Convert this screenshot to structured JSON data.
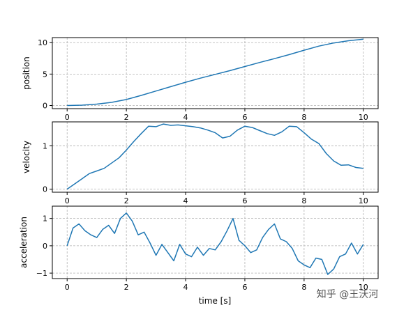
{
  "chart_data": [
    {
      "type": "line",
      "title": "",
      "xlabel": "",
      "ylabel": "position",
      "xlim": [
        -0.5,
        10.5
      ],
      "ylim": [
        -0.5,
        10.8
      ],
      "xticks": [
        0,
        2,
        4,
        6,
        8,
        10
      ],
      "yticks": [
        0,
        5,
        10
      ],
      "grid": true,
      "color": "#1f77b4",
      "series": [
        {
          "x": [
            0,
            0.5,
            1.0,
            1.5,
            2.0,
            2.5,
            3.0,
            3.5,
            4.0,
            4.5,
            5.0,
            5.5,
            6.0,
            6.5,
            7.0,
            7.5,
            8.0,
            8.5,
            9.0,
            9.5,
            10.0
          ],
          "values": [
            0.0,
            0.05,
            0.22,
            0.5,
            0.95,
            1.6,
            2.3,
            3.0,
            3.7,
            4.35,
            4.95,
            5.55,
            6.2,
            6.85,
            7.45,
            8.1,
            8.8,
            9.45,
            9.95,
            10.3,
            10.55
          ]
        }
      ]
    },
    {
      "type": "line",
      "title": "",
      "xlabel": "",
      "ylabel": "velocity",
      "xlim": [
        -0.5,
        10.5
      ],
      "ylim": [
        -0.07,
        1.55
      ],
      "xticks": [
        0,
        2,
        4,
        6,
        8,
        10
      ],
      "yticks": [
        0,
        1
      ],
      "grid": true,
      "color": "#1f77b4",
      "series": [
        {
          "x": [
            0,
            0.25,
            0.5,
            0.75,
            1.0,
            1.25,
            1.5,
            1.75,
            2.0,
            2.25,
            2.5,
            2.75,
            3.0,
            3.25,
            3.5,
            3.75,
            4.0,
            4.25,
            4.5,
            4.75,
            5.0,
            5.25,
            5.5,
            5.75,
            6.0,
            6.25,
            6.5,
            6.75,
            7.0,
            7.25,
            7.5,
            7.75,
            8.0,
            8.25,
            8.5,
            8.75,
            9.0,
            9.25,
            9.5,
            9.75,
            10.0
          ],
          "values": [
            0.0,
            0.12,
            0.24,
            0.36,
            0.42,
            0.48,
            0.6,
            0.72,
            0.9,
            1.1,
            1.28,
            1.45,
            1.44,
            1.5,
            1.47,
            1.48,
            1.46,
            1.44,
            1.41,
            1.36,
            1.3,
            1.18,
            1.22,
            1.36,
            1.45,
            1.42,
            1.35,
            1.28,
            1.24,
            1.32,
            1.45,
            1.44,
            1.3,
            1.15,
            1.05,
            0.82,
            0.65,
            0.55,
            0.56,
            0.5,
            0.48
          ]
        }
      ]
    },
    {
      "type": "line",
      "title": "",
      "xlabel": "time [s]",
      "ylabel": "acceleration",
      "xlim": [
        -0.5,
        10.5
      ],
      "ylim": [
        -1.2,
        1.45
      ],
      "xticks": [
        0,
        2,
        4,
        6,
        8,
        10
      ],
      "yticks": [
        -1,
        0,
        1
      ],
      "grid": true,
      "color": "#1f77b4",
      "series": [
        {
          "x": [
            0,
            0.2,
            0.4,
            0.6,
            0.8,
            1.0,
            1.2,
            1.4,
            1.6,
            1.8,
            2.0,
            2.2,
            2.4,
            2.6,
            2.8,
            3.0,
            3.2,
            3.4,
            3.6,
            3.8,
            4.0,
            4.2,
            4.4,
            4.6,
            4.8,
            5.0,
            5.2,
            5.4,
            5.6,
            5.8,
            6.0,
            6.2,
            6.4,
            6.6,
            6.8,
            7.0,
            7.2,
            7.4,
            7.6,
            7.8,
            8.0,
            8.2,
            8.4,
            8.6,
            8.8,
            9.0,
            9.2,
            9.4,
            9.6,
            9.8,
            10.0
          ],
          "values": [
            0.0,
            0.65,
            0.8,
            0.55,
            0.4,
            0.3,
            0.6,
            0.75,
            0.45,
            1.0,
            1.2,
            0.9,
            0.4,
            0.5,
            0.1,
            -0.35,
            0.05,
            -0.25,
            -0.55,
            0.05,
            -0.3,
            -0.4,
            -0.05,
            -0.35,
            -0.1,
            -0.15,
            0.15,
            0.55,
            1.0,
            0.2,
            0.0,
            -0.25,
            -0.15,
            0.3,
            0.6,
            0.8,
            0.25,
            0.15,
            -0.1,
            -0.55,
            -0.7,
            -0.8,
            -0.45,
            -0.5,
            -1.05,
            -0.85,
            -0.4,
            -0.3,
            0.1,
            -0.3,
            0.05
          ]
        }
      ]
    }
  ],
  "watermark": {
    "icon": "zhihu-logo",
    "text": "知乎 @王沃河"
  }
}
